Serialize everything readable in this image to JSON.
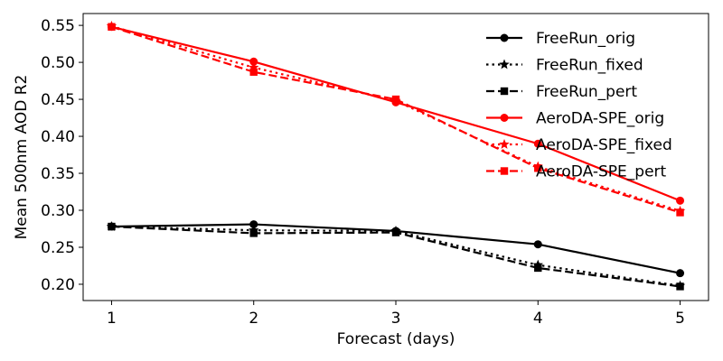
{
  "chart_data": {
    "type": "line",
    "title": "",
    "xlabel": "Forecast (days)",
    "ylabel": "Mean 500nm AOD R2",
    "x": [
      1,
      2,
      3,
      4,
      5
    ],
    "x_ticks": [
      "1",
      "2",
      "3",
      "4",
      "5"
    ],
    "y_ticks": [
      "0.20",
      "0.25",
      "0.30",
      "0.35",
      "0.40",
      "0.45",
      "0.50",
      "0.55"
    ],
    "xlim": [
      0.8,
      5.2
    ],
    "ylim": [
      0.178,
      0.566
    ],
    "grid": false,
    "legend_position": "upper-right",
    "series": [
      {
        "name": "FreeRun_orig",
        "color": "#000000",
        "linestyle": "solid",
        "marker": "circle",
        "values": [
          0.278,
          0.281,
          0.272,
          0.254,
          0.215
        ]
      },
      {
        "name": "FreeRun_fixed",
        "color": "#000000",
        "linestyle": "dotted",
        "marker": "star",
        "values": [
          0.278,
          0.273,
          0.272,
          0.226,
          0.198
        ]
      },
      {
        "name": "FreeRun_pert",
        "color": "#000000",
        "linestyle": "dashed",
        "marker": "square",
        "values": [
          0.278,
          0.269,
          0.27,
          0.222,
          0.197
        ]
      },
      {
        "name": "AeroDA-SPE_orig",
        "color": "#ff0000",
        "linestyle": "solid",
        "marker": "circle",
        "values": [
          0.548,
          0.501,
          0.446,
          0.39,
          0.313
        ]
      },
      {
        "name": "AeroDA-SPE_fixed",
        "color": "#ff0000",
        "linestyle": "dotted",
        "marker": "star",
        "values": [
          0.549,
          0.493,
          0.448,
          0.359,
          0.299
        ]
      },
      {
        "name": "AeroDA-SPE_pert",
        "color": "#ff0000",
        "linestyle": "dashed",
        "marker": "square",
        "values": [
          0.548,
          0.487,
          0.45,
          0.357,
          0.297
        ]
      }
    ]
  }
}
